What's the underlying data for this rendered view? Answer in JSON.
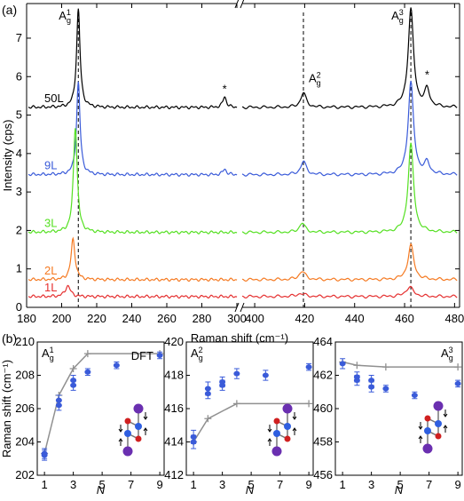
{
  "panel_a_label": "(a)",
  "panel_b_label": "(b)",
  "chart_data": [
    {
      "type": "line",
      "panel": "(a)",
      "xlabel": "Raman shift (cm⁻¹)",
      "ylabel": "Intensity (cps)",
      "x_segments": [
        [
          180,
          395
        ],
        [
          400,
          482
        ]
      ],
      "xticks": [
        180,
        200,
        220,
        240,
        260,
        280,
        300,
        400,
        420,
        440,
        460,
        480
      ],
      "ylim": [
        0,
        7.9
      ],
      "yticks": [
        0,
        1,
        2,
        3,
        4,
        5,
        6,
        7
      ],
      "axis_break_marker": "//",
      "dashed_lines_x": [
        209.5,
        419.5,
        462.5
      ],
      "peak_labels": [
        {
          "base": "A",
          "sub": "g",
          "sup": "1",
          "x": 209.5
        },
        {
          "base": "A",
          "sub": "g",
          "sup": "2",
          "x": 419.5
        },
        {
          "base": "A",
          "sub": "g",
          "sup": "3",
          "x": 462.5
        }
      ],
      "star_marks": [
        {
          "text": "*",
          "x": 293
        },
        {
          "text": "*",
          "x": 469
        }
      ],
      "series": [
        {
          "name": "50L",
          "color": "#000000",
          "baseline": 5.2,
          "peaks": [
            {
              "x": 209.5,
              "h": 2.55,
              "w": 1.2
            },
            {
              "x": 293,
              "h": 0.28,
              "w": 1.2
            },
            {
              "x": 419.5,
              "h": 0.38,
              "w": 1.3
            },
            {
              "x": 462.5,
              "h": 2.55,
              "w": 1.3
            },
            {
              "x": 469,
              "h": 0.45,
              "w": 1.2
            }
          ]
        },
        {
          "name": "9L",
          "color": "#3a5bd9",
          "baseline": 3.45,
          "peaks": [
            {
              "x": 209.5,
              "h": 2.4,
              "w": 1.2
            },
            {
              "x": 293,
              "h": 0.15,
              "w": 1.2
            },
            {
              "x": 419.5,
              "h": 0.35,
              "w": 1.3
            },
            {
              "x": 462.5,
              "h": 2.4,
              "w": 1.3
            },
            {
              "x": 469,
              "h": 0.3,
              "w": 1.2
            }
          ]
        },
        {
          "name": "3L",
          "color": "#55e022",
          "baseline": 1.95,
          "peaks": [
            {
              "x": 207.8,
              "h": 2.75,
              "w": 1.3
            },
            {
              "x": 419,
              "h": 0.25,
              "w": 1.3
            },
            {
              "x": 462.5,
              "h": 2.3,
              "w": 1.3
            }
          ]
        },
        {
          "name": "2L",
          "color": "#f57a22",
          "baseline": 0.72,
          "peaks": [
            {
              "x": 206.5,
              "h": 1.05,
              "w": 1.4
            },
            {
              "x": 419,
              "h": 0.22,
              "w": 1.5
            },
            {
              "x": 462.5,
              "h": 0.9,
              "w": 1.4
            }
          ]
        },
        {
          "name": "1L",
          "color": "#e53030",
          "baseline": 0.28,
          "peaks": [
            {
              "x": 203.5,
              "h": 0.28,
              "w": 1.8
            },
            {
              "x": 418.5,
              "h": 0.08,
              "w": 2.0
            },
            {
              "x": 462,
              "h": 0.25,
              "w": 1.8
            }
          ]
        }
      ]
    },
    {
      "type": "scatter",
      "panel": "(b)",
      "title": {
        "base": "A",
        "sub": "g",
        "sup": "1"
      },
      "ylabel": "Raman shift (cm⁻¹)",
      "xlabel": "N",
      "xlim": [
        0.5,
        9.3
      ],
      "ylim": [
        202,
        210
      ],
      "xticks": [
        1,
        3,
        5,
        7,
        9
      ],
      "yticks": [
        202,
        204,
        206,
        208,
        210
      ],
      "dft_label": "DFT",
      "experiment": {
        "x": [
          1,
          1,
          2,
          2,
          3,
          3,
          4,
          6,
          9
        ],
        "y": [
          203.3,
          203.2,
          206.5,
          206.2,
          207.7,
          207.4,
          208.2,
          208.6,
          209.2
        ],
        "err": [
          0.3,
          0.3,
          0.3,
          0.3,
          0.3,
          0.3,
          0.2,
          0.2,
          0.2
        ]
      },
      "dft": {
        "x": [
          1,
          2,
          3,
          4,
          9
        ],
        "y": [
          203.3,
          206.8,
          208.4,
          209.3,
          209.3
        ]
      }
    },
    {
      "type": "scatter",
      "panel": "(b)",
      "title": {
        "base": "A",
        "sub": "g",
        "sup": "2"
      },
      "xlabel": "N",
      "xlim": [
        0.5,
        9.3
      ],
      "ylim": [
        412,
        420
      ],
      "xticks": [
        1,
        3,
        5,
        7,
        9
      ],
      "yticks": [
        412,
        414,
        416,
        418,
        420
      ],
      "experiment": {
        "x": [
          1,
          1,
          2,
          2,
          3,
          3,
          4,
          6,
          9
        ],
        "y": [
          414.3,
          414.0,
          417.2,
          416.9,
          417.4,
          417.6,
          418.1,
          418.0,
          418.5
        ],
        "err": [
          0.4,
          0.4,
          0.4,
          0.3,
          0.3,
          0.3,
          0.3,
          0.3,
          0.2
        ]
      },
      "dft": {
        "x": [
          1,
          2,
          4,
          9
        ],
        "y": [
          414.0,
          415.4,
          416.3,
          416.3
        ]
      }
    },
    {
      "type": "scatter",
      "panel": "(b)",
      "title": {
        "base": "A",
        "sub": "g",
        "sup": "3"
      },
      "xlabel": "N",
      "xlim": [
        0.5,
        9.3
      ],
      "ylim": [
        456,
        464
      ],
      "xticks": [
        1,
        3,
        5,
        7,
        9
      ],
      "yticks": [
        456,
        458,
        460,
        462,
        464
      ],
      "experiment": {
        "x": [
          1,
          2,
          2,
          3,
          3,
          4,
          6,
          9
        ],
        "y": [
          462.7,
          461.9,
          461.7,
          461.7,
          461.3,
          461.2,
          460.8,
          461.5
        ],
        "err": [
          0.3,
          0.3,
          0.3,
          0.3,
          0.3,
          0.2,
          0.2,
          0.2
        ]
      },
      "dft": {
        "x": [
          1,
          2,
          4,
          9
        ],
        "y": [
          462.8,
          462.6,
          462.5,
          462.5
        ]
      }
    }
  ]
}
